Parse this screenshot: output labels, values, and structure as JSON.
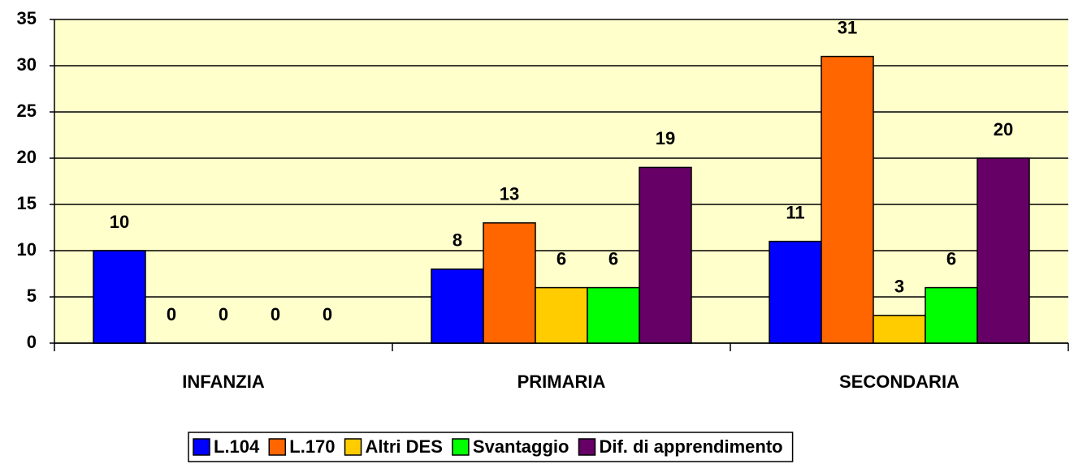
{
  "chart_data": {
    "type": "bar",
    "categories": [
      "INFANZIA",
      "PRIMARIA",
      "SECONDARIA"
    ],
    "series": [
      {
        "name": "L.104",
        "color": "#0000ff",
        "values": [
          10,
          8,
          11
        ]
      },
      {
        "name": "L.170",
        "color": "#ff6600",
        "values": [
          0,
          13,
          31
        ]
      },
      {
        "name": "Altri DES",
        "color": "#ffcc00",
        "values": [
          0,
          6,
          3
        ]
      },
      {
        "name": "Svantaggio",
        "color": "#00ff00",
        "values": [
          0,
          6,
          6
        ]
      },
      {
        "name": "Dif. di apprendimento",
        "color": "#660066",
        "values": [
          0,
          19,
          20
        ]
      }
    ],
    "ylim": [
      0,
      35
    ],
    "yticks": [
      0,
      5,
      10,
      15,
      20,
      25,
      30,
      35
    ],
    "grid": true,
    "legend": "bottom"
  }
}
